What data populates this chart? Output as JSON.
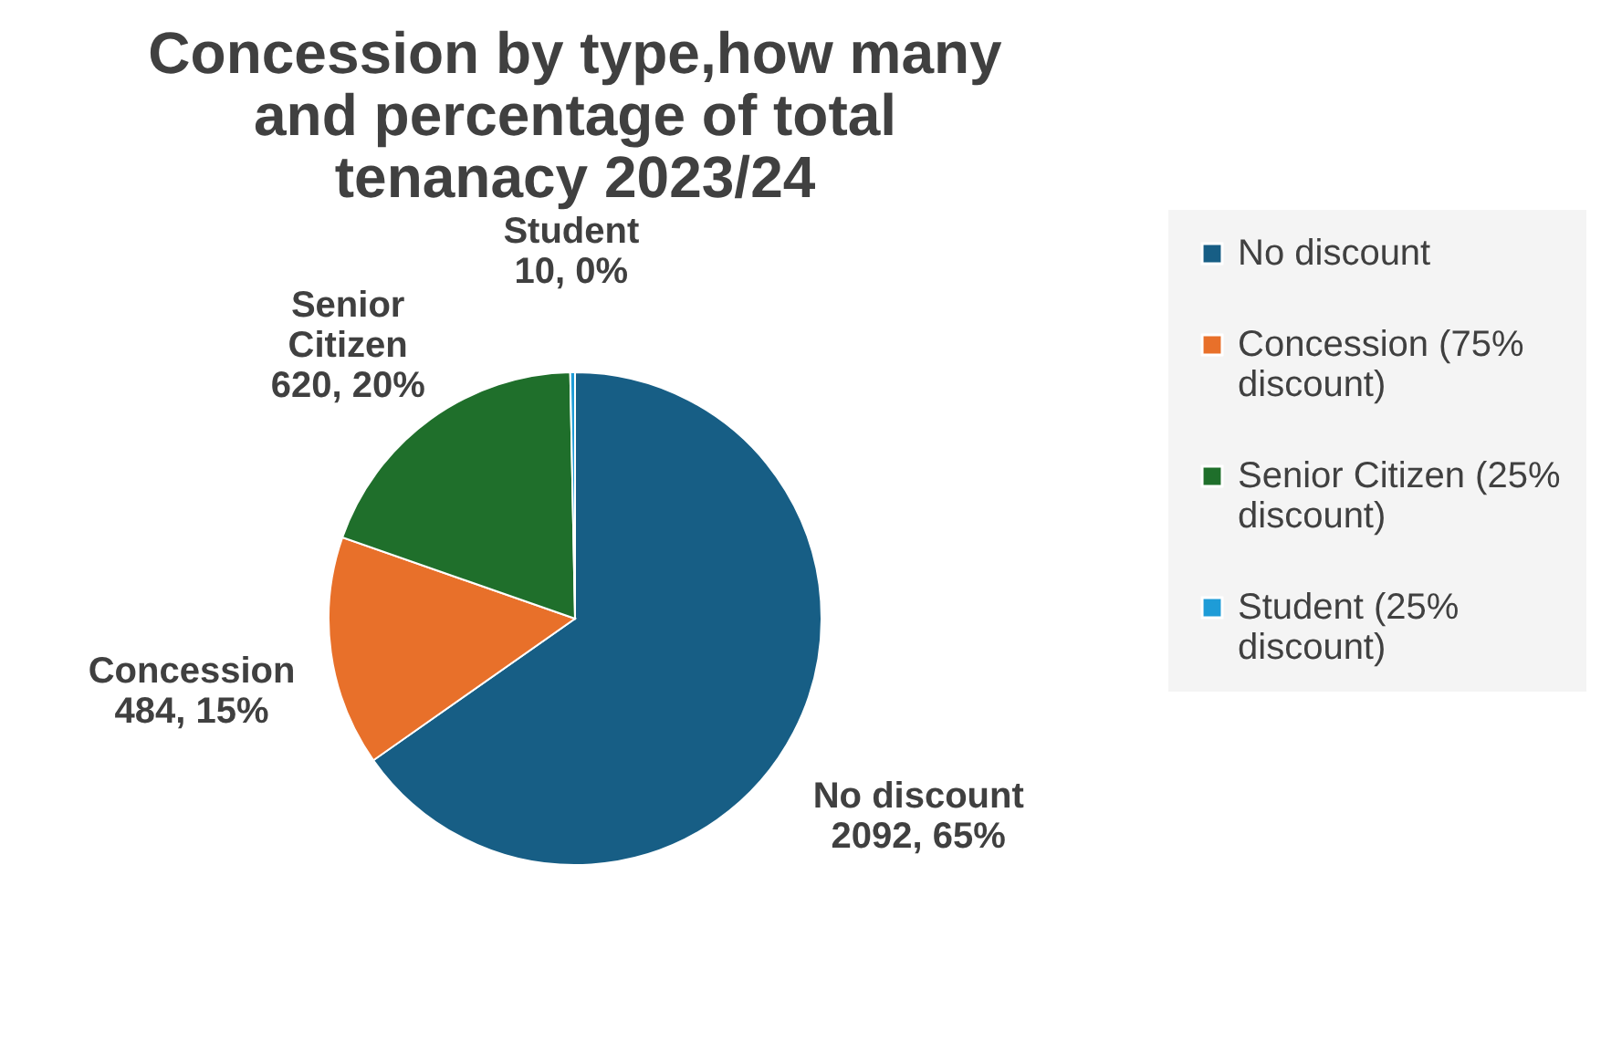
{
  "chart_data": {
    "type": "pie",
    "title": "Concession by type,how many and percentage of total tenanacy 2023/24",
    "categories": [
      "No discount",
      "Concession (75% discount)",
      "Senior Citizen (25% discount)",
      "Student (25% discount)"
    ],
    "values": [
      2092,
      484,
      620,
      10
    ],
    "colors": [
      "#175e85",
      "#e8702a",
      "#1f6f2b",
      "#1e9cd7"
    ],
    "value_labels": [
      "No discount 2092, 65%",
      "Concession 484, 15%",
      "Senior Citizen 620, 20%",
      "Student 10, 0%"
    ],
    "legend": "right"
  }
}
